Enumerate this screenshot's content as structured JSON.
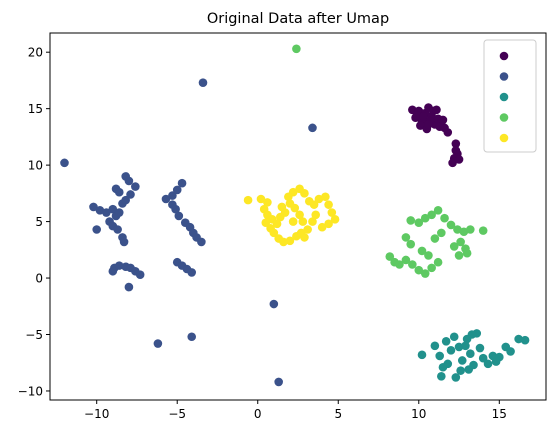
{
  "chart_data": {
    "type": "scatter",
    "title": "Original Data after Umap",
    "xlabel": "",
    "ylabel": "",
    "xlim": [
      -12.9,
      17.9
    ],
    "ylim": [
      -10.8,
      21.7
    ],
    "xticks": [
      -10,
      -5,
      0,
      5,
      10,
      15
    ],
    "yticks": [
      -10,
      -5,
      0,
      5,
      10,
      15,
      20
    ],
    "grid": false,
    "legend": {
      "position": "top-right",
      "entries": [
        "",
        "",
        "",
        "",
        ""
      ]
    },
    "series": [
      {
        "color": "#440154",
        "points": [
          [
            9.6,
            14.9
          ],
          [
            9.8,
            14.2
          ],
          [
            10.0,
            14.8
          ],
          [
            10.2,
            13.9
          ],
          [
            10.4,
            14.6
          ],
          [
            10.6,
            15.1
          ],
          [
            10.8,
            14.3
          ],
          [
            11.0,
            13.6
          ],
          [
            11.2,
            14.1
          ],
          [
            11.4,
            13.8
          ],
          [
            11.6,
            13.3
          ],
          [
            11.8,
            12.9
          ],
          [
            10.1,
            13.5
          ],
          [
            10.5,
            13.2
          ],
          [
            10.9,
            14.8
          ],
          [
            11.1,
            14.9
          ],
          [
            9.9,
            14.4
          ],
          [
            10.3,
            14.3
          ],
          [
            10.7,
            13.9
          ],
          [
            11.3,
            13.4
          ],
          [
            11.5,
            14.0
          ],
          [
            10.6,
            13.6
          ],
          [
            12.3,
            11.9
          ],
          [
            12.4,
            11.0
          ],
          [
            12.2,
            10.6
          ],
          [
            12.1,
            10.2
          ],
          [
            12.5,
            10.5
          ],
          [
            12.3,
            11.3
          ]
        ]
      },
      {
        "color": "#3b528b",
        "points": [
          [
            -12.0,
            10.2
          ],
          [
            -3.4,
            17.3
          ],
          [
            3.4,
            13.3
          ],
          [
            -10.2,
            6.3
          ],
          [
            -9.8,
            6.0
          ],
          [
            -9.4,
            5.8
          ],
          [
            -9.0,
            6.1
          ],
          [
            -8.8,
            5.5
          ],
          [
            -8.6,
            5.8
          ],
          [
            -9.2,
            5.0
          ],
          [
            -9.0,
            4.6
          ],
          [
            -8.7,
            4.3
          ],
          [
            -10.0,
            4.3
          ],
          [
            -8.4,
            6.6
          ],
          [
            -8.2,
            6.9
          ],
          [
            -7.9,
            7.4
          ],
          [
            -7.6,
            8.1
          ],
          [
            -8.0,
            8.6
          ],
          [
            -8.2,
            9.0
          ],
          [
            -8.8,
            7.9
          ],
          [
            -8.6,
            7.6
          ],
          [
            -8.4,
            3.6
          ],
          [
            -8.3,
            3.2
          ],
          [
            -8.9,
            0.9
          ],
          [
            -8.6,
            1.1
          ],
          [
            -8.2,
            1.0
          ],
          [
            -7.9,
            0.9
          ],
          [
            -7.6,
            0.6
          ],
          [
            -7.3,
            0.3
          ],
          [
            -9.0,
            0.6
          ],
          [
            -8.0,
            -0.8
          ],
          [
            -5.7,
            7.0
          ],
          [
            -5.3,
            7.3
          ],
          [
            -5.0,
            7.8
          ],
          [
            -4.7,
            8.4
          ],
          [
            -5.3,
            6.5
          ],
          [
            -5.1,
            6.1
          ],
          [
            -4.9,
            5.5
          ],
          [
            -4.5,
            4.9
          ],
          [
            -4.2,
            4.5
          ],
          [
            -4.0,
            4.0
          ],
          [
            -3.8,
            3.6
          ],
          [
            -3.5,
            3.2
          ],
          [
            -5.0,
            1.4
          ],
          [
            -4.7,
            1.1
          ],
          [
            -4.4,
            0.8
          ],
          [
            -4.1,
            0.5
          ],
          [
            -6.2,
            -5.8
          ],
          [
            -4.1,
            -5.2
          ],
          [
            1.0,
            -2.3
          ],
          [
            1.3,
            -9.2
          ]
        ]
      },
      {
        "color": "#21918c",
        "points": [
          [
            10.2,
            -6.8
          ],
          [
            11.0,
            -6.0
          ],
          [
            11.3,
            -6.9
          ],
          [
            11.5,
            -7.9
          ],
          [
            11.4,
            -8.7
          ],
          [
            11.8,
            -7.6
          ],
          [
            12.0,
            -6.4
          ],
          [
            12.2,
            -5.2
          ],
          [
            12.5,
            -6.1
          ],
          [
            12.7,
            -7.3
          ],
          [
            12.3,
            -8.8
          ],
          [
            13.0,
            -5.4
          ],
          [
            13.2,
            -6.7
          ],
          [
            13.4,
            -7.7
          ],
          [
            13.1,
            -8.1
          ],
          [
            13.6,
            -4.9
          ],
          [
            13.8,
            -6.2
          ],
          [
            14.0,
            -7.1
          ],
          [
            14.3,
            -7.6
          ],
          [
            14.6,
            -6.9
          ],
          [
            15.0,
            -7.0
          ],
          [
            15.4,
            -6.1
          ],
          [
            15.7,
            -6.5
          ],
          [
            16.2,
            -5.4
          ],
          [
            16.6,
            -5.5
          ],
          [
            11.7,
            -5.6
          ],
          [
            12.6,
            -8.2
          ],
          [
            12.9,
            -6.0
          ],
          [
            13.3,
            -5.0
          ],
          [
            14.8,
            -7.4
          ]
        ]
      },
      {
        "color": "#5ec962",
        "points": [
          [
            2.4,
            20.3
          ],
          [
            9.5,
            5.1
          ],
          [
            10.0,
            4.9
          ],
          [
            10.4,
            5.3
          ],
          [
            10.8,
            5.6
          ],
          [
            11.2,
            6.0
          ],
          [
            11.6,
            5.3
          ],
          [
            12.0,
            4.7
          ],
          [
            12.4,
            4.3
          ],
          [
            12.8,
            4.1
          ],
          [
            13.2,
            4.3
          ],
          [
            11.4,
            4.0
          ],
          [
            11.0,
            3.5
          ],
          [
            12.6,
            3.2
          ],
          [
            12.2,
            2.8
          ],
          [
            12.9,
            2.6
          ],
          [
            12.5,
            2.0
          ],
          [
            13.0,
            2.2
          ],
          [
            9.2,
            3.6
          ],
          [
            9.5,
            3.0
          ],
          [
            8.2,
            1.9
          ],
          [
            8.5,
            1.4
          ],
          [
            8.8,
            1.2
          ],
          [
            9.2,
            1.6
          ],
          [
            9.6,
            1.2
          ],
          [
            10.0,
            0.7
          ],
          [
            10.4,
            0.4
          ],
          [
            10.8,
            0.9
          ],
          [
            11.2,
            1.4
          ],
          [
            10.6,
            2.0
          ],
          [
            10.2,
            2.4
          ],
          [
            14.0,
            4.2
          ]
        ]
      },
      {
        "color": "#fde725",
        "points": [
          [
            -0.6,
            6.9
          ],
          [
            0.2,
            7.0
          ],
          [
            0.6,
            6.7
          ],
          [
            0.4,
            6.1
          ],
          [
            0.6,
            5.6
          ],
          [
            0.9,
            5.2
          ],
          [
            1.2,
            4.8
          ],
          [
            0.8,
            4.4
          ],
          [
            1.0,
            4.0
          ],
          [
            1.3,
            3.5
          ],
          [
            1.6,
            3.2
          ],
          [
            2.0,
            3.3
          ],
          [
            2.4,
            3.7
          ],
          [
            2.7,
            4.0
          ],
          [
            2.9,
            3.6
          ],
          [
            3.1,
            4.3
          ],
          [
            2.8,
            5.0
          ],
          [
            2.6,
            5.6
          ],
          [
            2.3,
            6.2
          ],
          [
            2.0,
            6.6
          ],
          [
            1.7,
            5.8
          ],
          [
            1.5,
            6.3
          ],
          [
            1.9,
            7.2
          ],
          [
            2.2,
            7.6
          ],
          [
            2.6,
            7.9
          ],
          [
            2.9,
            7.5
          ],
          [
            3.2,
            6.8
          ],
          [
            3.5,
            6.5
          ],
          [
            3.8,
            7.0
          ],
          [
            4.2,
            7.2
          ],
          [
            4.4,
            6.5
          ],
          [
            4.6,
            5.8
          ],
          [
            4.8,
            5.2
          ],
          [
            4.4,
            4.8
          ],
          [
            4.0,
            4.5
          ],
          [
            3.6,
            5.6
          ],
          [
            3.4,
            5.0
          ],
          [
            2.2,
            5.0
          ],
          [
            1.4,
            5.4
          ],
          [
            0.5,
            4.9
          ]
        ]
      }
    ]
  }
}
